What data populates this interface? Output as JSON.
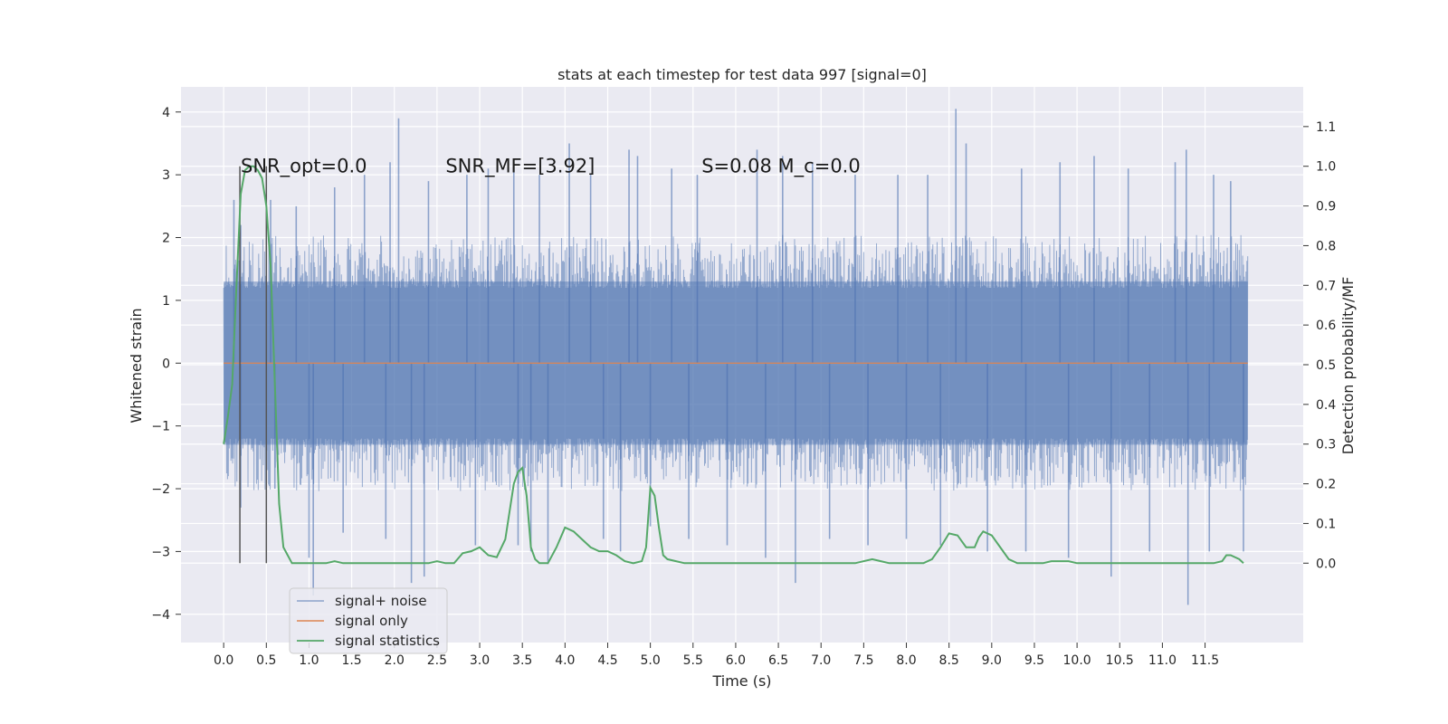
{
  "chart_data": {
    "type": "line",
    "title": "stats at each timestep for test data 997 [signal=0]",
    "xlabel": "Time (s)",
    "ylabel": "Whitened strain",
    "y2label": "Detection probability/MF",
    "xlim": [
      -0.5,
      12.65
    ],
    "ylim": [
      -4.45,
      4.4
    ],
    "y2lim": [
      -0.2,
      1.2
    ],
    "x_ticks": [
      "0.0",
      "0.5",
      "1.0",
      "1.5",
      "2.0",
      "2.5",
      "3.0",
      "3.5",
      "4.0",
      "4.5",
      "5.0",
      "5.5",
      "6.0",
      "6.5",
      "7.0",
      "7.5",
      "8.0",
      "8.5",
      "9.0",
      "9.5",
      "10.0",
      "10.5",
      "11.0",
      "11.5"
    ],
    "x_tick_values": [
      0.0,
      0.5,
      1.0,
      1.5,
      2.0,
      2.5,
      3.0,
      3.5,
      4.0,
      4.5,
      5.0,
      5.5,
      6.0,
      6.5,
      7.0,
      7.5,
      8.0,
      8.5,
      9.0,
      9.5,
      10.0,
      10.5,
      11.0,
      11.5
    ],
    "y_ticks": [
      "−4",
      "−3",
      "−2",
      "−1",
      "0",
      "1",
      "2",
      "3",
      "4"
    ],
    "y_tick_values": [
      -4,
      -3,
      -2,
      -1,
      0,
      1,
      2,
      3,
      4
    ],
    "y2_ticks": [
      "0.0",
      "0.1",
      "0.2",
      "0.3",
      "0.4",
      "0.5",
      "0.6",
      "0.7",
      "0.8",
      "0.9",
      "1.0",
      "1.1"
    ],
    "y2_tick_values": [
      0.0,
      0.1,
      0.2,
      0.3,
      0.4,
      0.5,
      0.6,
      0.7,
      0.8,
      0.9,
      1.0,
      1.1
    ],
    "grid": true,
    "legend_position": "lower-left",
    "annotations": [
      {
        "text": "SNR_opt=0.0",
        "x": 0.2,
        "y2": 1.0
      },
      {
        "text": "SNR_MF=[3.92]",
        "x": 2.6,
        "y2": 1.0
      },
      {
        "text": "S=0.08   M_c=0.0",
        "x": 5.6,
        "y2": 1.0
      }
    ],
    "vlines": [
      0.19,
      0.5
    ],
    "vline_range_y2": [
      0.0,
      1.0
    ],
    "series": [
      {
        "name": "signal+ noise",
        "axis": "left",
        "color": "#4c72b0",
        "x_range": [
          0.0,
          12.0
        ],
        "core_band": [
          -1.3,
          1.3
        ],
        "typical_peak_band": [
          -2.0,
          2.0
        ],
        "spikes": [
          {
            "x": 0.12,
            "y": 2.6
          },
          {
            "x": 0.2,
            "y": 2.2
          },
          {
            "x": 0.55,
            "y": 2.6
          },
          {
            "x": 0.85,
            "y": 2.5
          },
          {
            "x": 1.3,
            "y": 2.8
          },
          {
            "x": 1.65,
            "y": 3.0
          },
          {
            "x": 1.95,
            "y": 3.2
          },
          {
            "x": 2.05,
            "y": 3.9
          },
          {
            "x": 2.4,
            "y": 2.9
          },
          {
            "x": 2.85,
            "y": 3.0
          },
          {
            "x": 3.1,
            "y": 3.1
          },
          {
            "x": 3.4,
            "y": 3.2
          },
          {
            "x": 3.7,
            "y": 3.0
          },
          {
            "x": 4.05,
            "y": 3.5
          },
          {
            "x": 4.3,
            "y": 3.0
          },
          {
            "x": 4.75,
            "y": 3.4
          },
          {
            "x": 4.85,
            "y": 3.3
          },
          {
            "x": 5.25,
            "y": 3.1
          },
          {
            "x": 5.55,
            "y": 3.0
          },
          {
            "x": 6.25,
            "y": 3.4
          },
          {
            "x": 6.55,
            "y": 3.3
          },
          {
            "x": 6.9,
            "y": 3.2
          },
          {
            "x": 7.4,
            "y": 3.0
          },
          {
            "x": 7.9,
            "y": 3.0
          },
          {
            "x": 8.25,
            "y": 3.0
          },
          {
            "x": 8.58,
            "y": 4.05
          },
          {
            "x": 8.7,
            "y": 3.5
          },
          {
            "x": 9.35,
            "y": 3.1
          },
          {
            "x": 9.8,
            "y": 3.2
          },
          {
            "x": 10.2,
            "y": 3.3
          },
          {
            "x": 10.6,
            "y": 3.1
          },
          {
            "x": 11.15,
            "y": 3.2
          },
          {
            "x": 11.28,
            "y": 3.4
          },
          {
            "x": 11.6,
            "y": 3.0
          },
          {
            "x": 11.8,
            "y": 2.9
          },
          {
            "x": 0.2,
            "y": -2.3
          },
          {
            "x": 0.6,
            "y": -2.0
          },
          {
            "x": 1.0,
            "y": -3.1
          },
          {
            "x": 1.05,
            "y": -3.7
          },
          {
            "x": 1.4,
            "y": -2.7
          },
          {
            "x": 1.9,
            "y": -2.8
          },
          {
            "x": 2.2,
            "y": -3.5
          },
          {
            "x": 2.35,
            "y": -3.4
          },
          {
            "x": 2.95,
            "y": -2.9
          },
          {
            "x": 3.45,
            "y": -2.9
          },
          {
            "x": 3.6,
            "y": -3.0
          },
          {
            "x": 3.8,
            "y": -3.2
          },
          {
            "x": 4.45,
            "y": -2.8
          },
          {
            "x": 4.65,
            "y": -3.0
          },
          {
            "x": 5.0,
            "y": -2.6
          },
          {
            "x": 5.45,
            "y": -2.8
          },
          {
            "x": 5.9,
            "y": -2.9
          },
          {
            "x": 6.35,
            "y": -3.1
          },
          {
            "x": 6.7,
            "y": -3.5
          },
          {
            "x": 7.1,
            "y": -2.8
          },
          {
            "x": 7.55,
            "y": -2.9
          },
          {
            "x": 8.0,
            "y": -2.8
          },
          {
            "x": 8.4,
            "y": -2.9
          },
          {
            "x": 8.95,
            "y": -3.0
          },
          {
            "x": 9.4,
            "y": -3.0
          },
          {
            "x": 9.9,
            "y": -3.1
          },
          {
            "x": 10.4,
            "y": -3.4
          },
          {
            "x": 10.85,
            "y": -3.0
          },
          {
            "x": 11.3,
            "y": -3.85
          },
          {
            "x": 11.55,
            "y": -3.0
          },
          {
            "x": 11.95,
            "y": -3.0
          }
        ]
      },
      {
        "name": "signal only",
        "axis": "left",
        "color": "#dd8452",
        "x": [
          0.0,
          12.0
        ],
        "y": [
          0.0,
          0.0
        ]
      },
      {
        "name": "signal statistics",
        "axis": "right",
        "color": "#55a868",
        "x": [
          0.0,
          0.05,
          0.1,
          0.15,
          0.2,
          0.25,
          0.3,
          0.35,
          0.4,
          0.45,
          0.5,
          0.55,
          0.6,
          0.65,
          0.7,
          0.75,
          0.8,
          0.9,
          1.0,
          1.1,
          1.2,
          1.3,
          1.4,
          1.6,
          1.8,
          2.0,
          2.2,
          2.4,
          2.5,
          2.6,
          2.7,
          2.8,
          2.9,
          3.0,
          3.1,
          3.2,
          3.3,
          3.4,
          3.45,
          3.5,
          3.55,
          3.6,
          3.65,
          3.7,
          3.8,
          3.9,
          4.0,
          4.1,
          4.2,
          4.3,
          4.4,
          4.5,
          4.6,
          4.7,
          4.8,
          4.9,
          4.95,
          5.0,
          5.05,
          5.1,
          5.15,
          5.2,
          5.3,
          5.4,
          5.6,
          5.8,
          6.0,
          6.2,
          6.4,
          6.6,
          6.8,
          7.0,
          7.2,
          7.4,
          7.6,
          7.7,
          7.8,
          7.9,
          8.0,
          8.1,
          8.2,
          8.3,
          8.4,
          8.5,
          8.6,
          8.7,
          8.8,
          8.85,
          8.9,
          9.0,
          9.1,
          9.2,
          9.3,
          9.4,
          9.5,
          9.6,
          9.7,
          9.8,
          9.9,
          10.0,
          10.2,
          10.4,
          10.6,
          10.8,
          11.0,
          11.2,
          11.4,
          11.6,
          11.7,
          11.75,
          11.8,
          11.9,
          11.95
        ],
        "y": [
          0.3,
          0.37,
          0.45,
          0.7,
          0.93,
          0.99,
          1.0,
          1.0,
          0.99,
          0.97,
          0.9,
          0.75,
          0.45,
          0.15,
          0.04,
          0.02,
          0.0,
          0.0,
          0.0,
          0.0,
          0.0,
          0.005,
          0.0,
          0.0,
          0.0,
          0.0,
          0.0,
          0.0,
          0.005,
          0.0,
          0.0,
          0.025,
          0.03,
          0.04,
          0.02,
          0.015,
          0.06,
          0.2,
          0.23,
          0.24,
          0.17,
          0.04,
          0.01,
          0.0,
          0.0,
          0.04,
          0.09,
          0.08,
          0.06,
          0.04,
          0.03,
          0.03,
          0.02,
          0.005,
          0.0,
          0.005,
          0.04,
          0.19,
          0.17,
          0.09,
          0.02,
          0.01,
          0.005,
          0.0,
          0.0,
          0.0,
          0.0,
          0.0,
          0.0,
          0.0,
          0.0,
          0.0,
          0.0,
          0.0,
          0.01,
          0.005,
          0.0,
          0.0,
          0.0,
          0.0,
          0.0,
          0.01,
          0.04,
          0.075,
          0.07,
          0.04,
          0.04,
          0.065,
          0.08,
          0.07,
          0.04,
          0.01,
          0.0,
          0.0,
          0.0,
          0.0,
          0.005,
          0.005,
          0.005,
          0.0,
          0.0,
          0.0,
          0.0,
          0.0,
          0.0,
          0.0,
          0.0,
          0.0,
          0.005,
          0.02,
          0.02,
          0.01,
          0.0
        ]
      }
    ]
  }
}
